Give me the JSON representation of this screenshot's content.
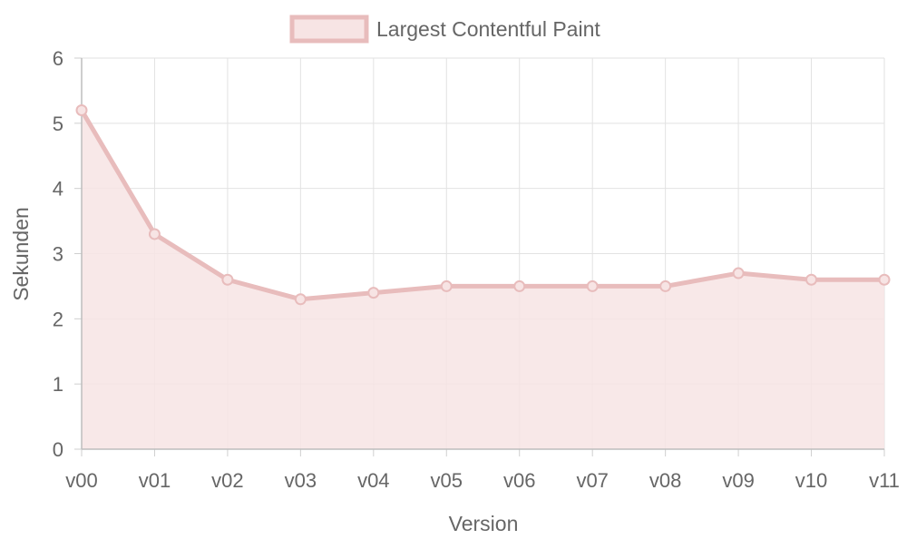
{
  "chart_data": {
    "type": "area",
    "title": "",
    "xlabel": "Version",
    "ylabel": "Sekunden",
    "categories": [
      "v00",
      "v01",
      "v02",
      "v03",
      "v04",
      "v05",
      "v06",
      "v07",
      "v08",
      "v09",
      "v10",
      "v11"
    ],
    "ylim": [
      0,
      6
    ],
    "yticks": [
      "0",
      "1",
      "2",
      "3",
      "4",
      "5",
      "6"
    ],
    "grid": true,
    "legend_position": "top-center",
    "series": [
      {
        "name": "Largest Contentful Paint",
        "values": [
          5.2,
          3.3,
          2.6,
          2.3,
          2.4,
          2.5,
          2.5,
          2.5,
          2.5,
          2.7,
          2.6,
          2.6
        ],
        "line_color": "#e8bcbc",
        "fill_color": "#f7e4e4"
      }
    ]
  }
}
